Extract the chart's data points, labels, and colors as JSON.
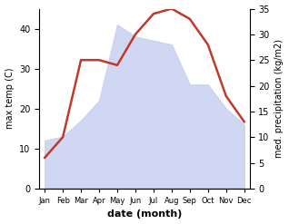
{
  "months": [
    "Jan",
    "Feb",
    "Mar",
    "Apr",
    "May",
    "Jun",
    "Jul",
    "Aug",
    "Sep",
    "Oct",
    "Nov",
    "Dec"
  ],
  "temp": [
    12,
    13,
    17,
    22,
    41,
    38,
    37,
    36,
    26,
    26,
    20,
    16
  ],
  "precip": [
    6,
    10,
    25,
    25,
    24,
    30,
    34,
    35,
    33,
    28,
    18,
    13
  ],
  "precip_color": "#c0392b",
  "temp_fill_color": "#c8d0f0",
  "temp_ylim": [
    0,
    45
  ],
  "precip_ylim": [
    0,
    35
  ],
  "temp_yticks": [
    0,
    10,
    20,
    30,
    40
  ],
  "precip_yticks": [
    0,
    5,
    10,
    15,
    20,
    25,
    30,
    35
  ],
  "ylabel_left": "max temp (C)",
  "ylabel_right": "med. precipitation (kg/m2)",
  "xlabel": "date (month)"
}
